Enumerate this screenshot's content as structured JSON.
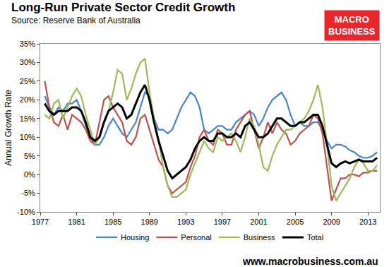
{
  "chart_data": {
    "type": "line",
    "title": "Long-Run Private Sector Credit Growth",
    "subtitle": "Source: Reserve Bank of Australia",
    "y_label": "Annual Growth Rate",
    "annotations": [
      {
        "text": "MACRO BUSINESS"
      },
      {
        "text": "www.macrobusiness.com.au"
      }
    ],
    "x": [
      1977.5,
      1978,
      1978.5,
      1979,
      1979.5,
      1980,
      1980.5,
      1981,
      1981.5,
      1982,
      1982.5,
      1983,
      1983.5,
      1984,
      1984.5,
      1985,
      1985.5,
      1986,
      1986.5,
      1987,
      1987.5,
      1988,
      1988.5,
      1989,
      1989.5,
      1990,
      1990.5,
      1991,
      1991.5,
      1992,
      1992.5,
      1993,
      1993.5,
      1994,
      1994.5,
      1995,
      1995.5,
      1996,
      1996.5,
      1997,
      1997.5,
      1998,
      1998.5,
      1999,
      1999.5,
      2000,
      2000.5,
      2001,
      2001.5,
      2002,
      2002.5,
      2003,
      2003.5,
      2004,
      2004.5,
      2005,
      2005.5,
      2006,
      2006.5,
      2007,
      2007.5,
      2008,
      2008.5,
      2009,
      2009.5,
      2010,
      2010.5,
      2011,
      2011.5,
      2012,
      2012.5,
      2013,
      2013.5,
      2014
    ],
    "series": [
      {
        "name": "Housing",
        "color": "#4a86c8",
        "values": [
          21,
          18,
          16,
          18,
          17,
          19,
          19,
          20,
          17,
          13,
          10,
          8,
          8,
          10,
          13,
          15,
          13,
          11,
          10,
          12,
          14,
          18,
          22,
          21,
          15,
          12,
          12,
          11,
          12,
          15,
          18,
          20,
          22,
          21,
          18,
          12,
          11,
          12,
          13,
          13,
          12,
          12,
          14,
          15,
          16,
          17,
          16,
          13,
          15,
          18,
          20,
          21,
          22,
          20,
          16,
          13,
          14,
          13,
          13,
          14,
          14,
          12,
          9,
          7,
          8,
          8,
          7.5,
          6.5,
          6,
          5,
          4.5,
          4.5,
          5,
          6
        ]
      },
      {
        "name": "Personal",
        "color": "#c0504d",
        "values": [
          25,
          18,
          14,
          13,
          16,
          12,
          16,
          15,
          14,
          12,
          9,
          8,
          14,
          20,
          21,
          18,
          16,
          14,
          9,
          8,
          10,
          15,
          16,
          12,
          8,
          4,
          2,
          -3,
          -5,
          -4,
          -3,
          -2,
          2,
          5,
          10,
          12,
          9,
          8,
          12,
          11,
          8,
          8,
          12,
          14,
          16,
          17,
          12,
          7,
          10,
          14,
          11,
          14,
          12,
          11,
          8,
          9,
          11,
          12,
          13,
          16,
          15,
          11,
          2,
          -7,
          -4,
          -1,
          -1,
          0,
          0,
          -0.5,
          0.5,
          0.5,
          1,
          1
        ]
      },
      {
        "name": "Business",
        "color": "#9bbb59",
        "values": [
          16,
          15,
          19,
          20,
          15,
          18,
          21,
          23,
          21,
          16,
          12,
          8,
          10,
          14,
          17,
          22,
          28,
          27,
          20,
          23,
          27,
          30,
          31,
          22,
          15,
          9,
          2,
          -3,
          -6,
          -6,
          -5,
          -4,
          0,
          3,
          6,
          9,
          7,
          6,
          10,
          9,
          10,
          11,
          9,
          6,
          10,
          15,
          13,
          8,
          2,
          1,
          5,
          8,
          10,
          12,
          12,
          13,
          14,
          15,
          17,
          20,
          24,
          18,
          8,
          -3,
          -7,
          -5,
          -3,
          -1,
          2,
          4,
          3,
          1,
          1,
          2.5
        ]
      },
      {
        "name": "Total",
        "color": "#000000",
        "values": [
          19,
          17,
          16,
          17,
          17,
          17,
          18,
          18,
          17,
          14,
          10,
          9,
          10,
          14,
          17,
          18,
          19,
          18,
          15,
          16,
          19,
          22,
          24,
          20,
          14,
          9,
          5,
          1,
          -1,
          0,
          1,
          2,
          4,
          7,
          9,
          10,
          9,
          9,
          11,
          11,
          10,
          10,
          11,
          10,
          13,
          14,
          12,
          10,
          10,
          11,
          13,
          15,
          15,
          14,
          13,
          13,
          14,
          14,
          15,
          16,
          16,
          13,
          8,
          3,
          2,
          3,
          3.5,
          3,
          3.5,
          4,
          3.5,
          3.5,
          3.5,
          4.5
        ]
      }
    ],
    "xlim": [
      1977,
      2014.3
    ],
    "xticks": [
      1977,
      1981,
      1985,
      1989,
      1993,
      1997,
      2001,
      2005,
      2009,
      2013
    ],
    "ylim": [
      -10,
      35
    ],
    "yticks": [
      {
        "value": -10,
        "label": "-10%"
      },
      {
        "value": -5,
        "label": "-5%"
      },
      {
        "value": 0,
        "label": "0%"
      },
      {
        "value": 5,
        "label": "5%"
      },
      {
        "value": 10,
        "label": "10%"
      },
      {
        "value": 15,
        "label": "15%"
      },
      {
        "value": 20,
        "label": "20%"
      },
      {
        "value": 25,
        "label": "25%"
      },
      {
        "value": 30,
        "label": "30%"
      },
      {
        "value": 35,
        "label": "35%"
      }
    ],
    "grid": false,
    "legend": "bottom"
  }
}
